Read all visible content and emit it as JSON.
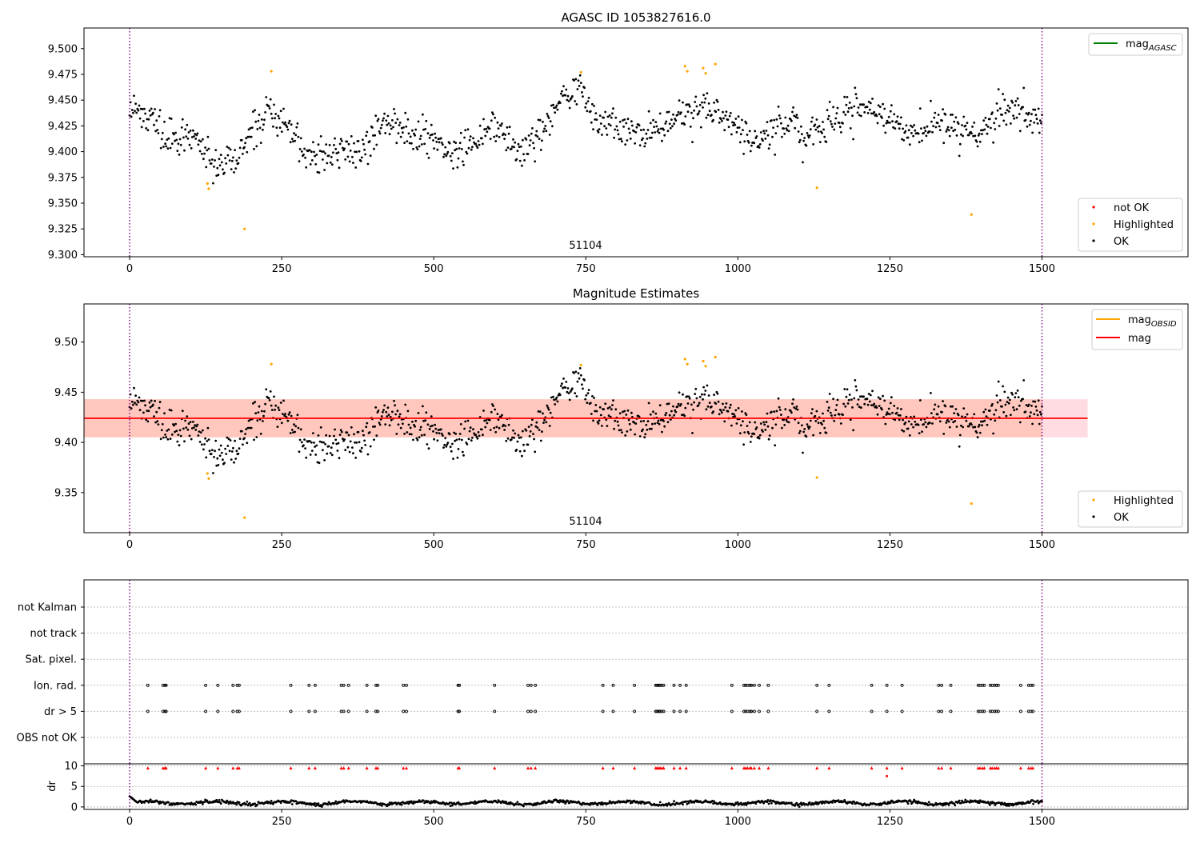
{
  "chart_data": [
    {
      "type": "scatter",
      "title": "AGASC ID 1053827616.0",
      "xlabel": "",
      "ylabel": "",
      "xlim": [
        -75,
        1740
      ],
      "ylim": [
        9.298,
        9.52
      ],
      "xticks": [
        0,
        250,
        500,
        750,
        1000,
        1250,
        1500
      ],
      "xtick_labels": [
        "0",
        "250",
        "500",
        "750",
        "1000",
        "1250",
        "1500"
      ],
      "yticks": [
        9.3,
        9.325,
        9.35,
        9.375,
        9.4,
        9.425,
        9.45,
        9.475,
        9.5
      ],
      "ytick_labels": [
        "9.300",
        "9.325",
        "9.350",
        "9.375",
        "9.400",
        "9.425",
        "9.450",
        "9.475",
        "9.500"
      ],
      "vlines": [
        0,
        1500
      ],
      "annotation": {
        "text": "51104",
        "x": 750,
        "y": 9.306
      },
      "legend_lines": [
        {
          "label": "mag",
          "sub": "AGASC",
          "color": "#008000"
        }
      ],
      "legend_points": [
        {
          "label": "not OK",
          "color": "#ff0000"
        },
        {
          "label": "Highlighted",
          "color": "#ffa500"
        },
        {
          "label": "OK",
          "color": "#000000"
        }
      ],
      "legend_lines_position": "upper right",
      "legend_points_position": "lower right",
      "grid": false,
      "series": [
        {
          "name": "OK",
          "color": "#000000",
          "trend": [
            [
              0,
              9.438
            ],
            [
              40,
              9.43
            ],
            [
              60,
              9.405
            ],
            [
              90,
              9.42
            ],
            [
              120,
              9.405
            ],
            [
              145,
              9.39
            ],
            [
              170,
              9.395
            ],
            [
              200,
              9.418
            ],
            [
              230,
              9.44
            ],
            [
              260,
              9.425
            ],
            [
              290,
              9.395
            ],
            [
              330,
              9.4
            ],
            [
              380,
              9.4
            ],
            [
              420,
              9.432
            ],
            [
              450,
              9.425
            ],
            [
              500,
              9.41
            ],
            [
              540,
              9.397
            ],
            [
              600,
              9.425
            ],
            [
              640,
              9.4
            ],
            [
              680,
              9.42
            ],
            [
              700,
              9.448
            ],
            [
              740,
              9.458
            ],
            [
              770,
              9.43
            ],
            [
              800,
              9.425
            ],
            [
              860,
              9.42
            ],
            [
              900,
              9.43
            ],
            [
              930,
              9.445
            ],
            [
              960,
              9.44
            ],
            [
              1000,
              9.425
            ],
            [
              1030,
              9.41
            ],
            [
              1060,
              9.42
            ],
            [
              1090,
              9.43
            ],
            [
              1110,
              9.415
            ],
            [
              1150,
              9.425
            ],
            [
              1200,
              9.445
            ],
            [
              1240,
              9.435
            ],
            [
              1280,
              9.418
            ],
            [
              1320,
              9.43
            ],
            [
              1360,
              9.425
            ],
            [
              1400,
              9.415
            ],
            [
              1440,
              9.44
            ],
            [
              1500,
              9.43
            ]
          ],
          "n": 1050,
          "spread": 0.0085
        },
        {
          "name": "Highlighted",
          "color": "#ffa500",
          "points": [
            [
              128,
              9.369
            ],
            [
              130,
              9.364
            ],
            [
              189,
              9.325
            ],
            [
              233,
              9.478
            ],
            [
              742,
              9.477
            ],
            [
              913,
              9.483
            ],
            [
              917,
              9.478
            ],
            [
              943,
              9.481
            ],
            [
              947,
              9.476
            ],
            [
              963,
              9.485
            ],
            [
              1130,
              9.365
            ],
            [
              1384,
              9.339
            ]
          ]
        }
      ]
    },
    {
      "type": "scatter",
      "title": "Magnitude Estimates",
      "xlabel": "",
      "ylabel": "",
      "xlim": [
        -75,
        1740
      ],
      "ylim": [
        9.31,
        9.538
      ],
      "xticks": [
        0,
        250,
        500,
        750,
        1000,
        1250,
        1500
      ],
      "xtick_labels": [
        "0",
        "250",
        "500",
        "750",
        "1000",
        "1250",
        "1500"
      ],
      "yticks": [
        9.35,
        9.4,
        9.45,
        9.5
      ],
      "ytick_labels": [
        "9.35",
        "9.40",
        "9.45",
        "9.50"
      ],
      "vlines": [
        0,
        1500
      ],
      "annotation": {
        "text": "51104",
        "x": 750,
        "y": 9.318
      },
      "mag_line": 9.424,
      "band_outer": [
        9.405,
        9.443
      ],
      "band_inner": [
        9.405,
        9.443
      ],
      "band_inner_xrange": [
        -75,
        1500
      ],
      "band_outer_xrange": [
        -75,
        1575
      ],
      "legend_lines": [
        {
          "label": "mag",
          "sub": "OBSID",
          "color": "#ffa500"
        },
        {
          "label": "mag",
          "sub": "",
          "color": "#ff0000"
        }
      ],
      "legend_points": [
        {
          "label": "Highlighted",
          "color": "#ffa500"
        },
        {
          "label": "OK",
          "color": "#000000"
        }
      ],
      "legend_lines_position": "upper right",
      "legend_points_position": "lower right",
      "grid": false
    },
    {
      "type": "scatter",
      "title": "",
      "xlabel": "",
      "ylabel": "",
      "xlim": [
        -75,
        1740
      ],
      "categories": [
        "not Kalman",
        "not track",
        "Sat. pixel.",
        "Ion. rad.",
        "dr > 5",
        "OBS not OK"
      ],
      "grid": true,
      "vlines": [
        0,
        1500
      ],
      "flag_x": [
        30,
        55,
        58,
        60,
        125,
        145,
        170,
        177,
        180,
        265,
        295,
        305,
        348,
        352,
        360,
        390,
        405,
        408,
        450,
        455,
        540,
        542,
        600,
        655,
        660,
        667,
        778,
        795,
        830,
        865,
        867,
        870,
        872,
        875,
        878,
        895,
        905,
        915,
        990,
        1010,
        1013,
        1016,
        1020,
        1022,
        1027,
        1035,
        1050,
        1130,
        1150,
        1220,
        1245,
        1270,
        1330,
        1335,
        1350,
        1395,
        1398,
        1402,
        1405,
        1415,
        1418,
        1422,
        1425,
        1428,
        1465,
        1478,
        1482,
        1485
      ],
      "flagged_rows": [
        "Ion. rad.",
        "dr > 5"
      ]
    },
    {
      "type": "scatter",
      "title": "",
      "xlabel": "",
      "ylabel": "dr",
      "xlim": [
        -75,
        1740
      ],
      "ylim": [
        -0.6,
        10.5
      ],
      "yticks": [
        0,
        5,
        10
      ],
      "ytick_labels": [
        "0",
        "5",
        "10"
      ],
      "xticks": [
        0,
        250,
        500,
        750,
        1000,
        1250,
        1500
      ],
      "xtick_labels": [
        "0",
        "250",
        "500",
        "750",
        "1000",
        "1250",
        "1500"
      ],
      "grid": true,
      "vlines": [
        0,
        1500
      ],
      "clipped_value": 9.5,
      "outlier": [
        1245,
        7.5
      ],
      "baseline": 1.0
    }
  ]
}
